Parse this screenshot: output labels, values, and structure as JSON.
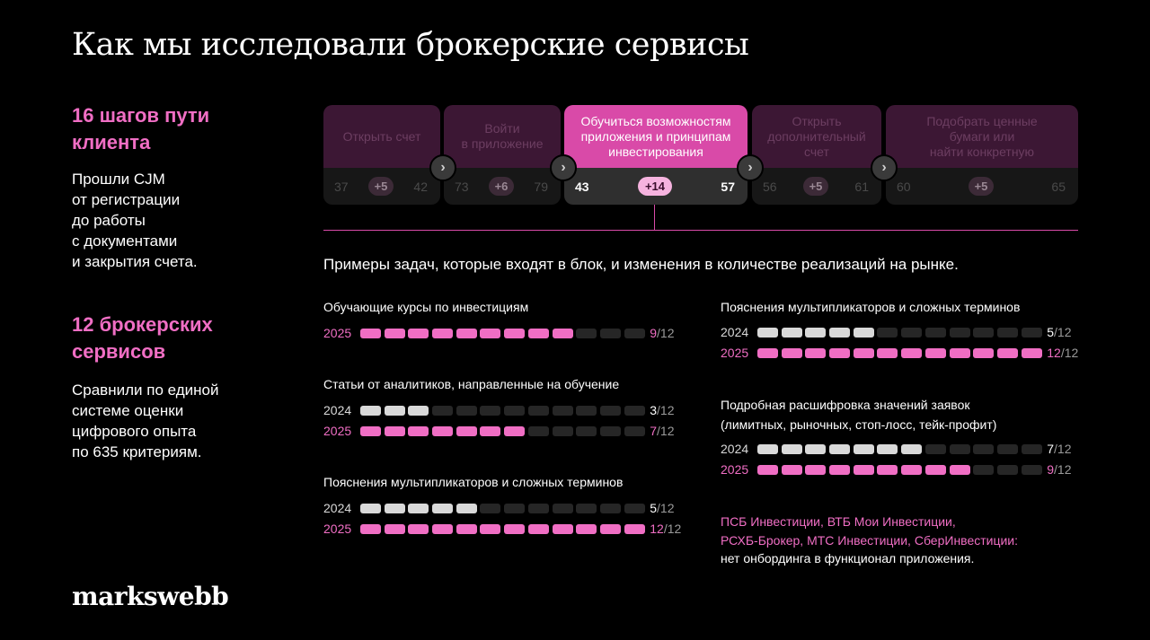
{
  "title": "Как мы исследовали брокерские сервисы",
  "left": {
    "block1_head": [
      "16 шагов пути",
      "клиента"
    ],
    "block1_text": [
      "Прошли CJM",
      "от регистрации",
      "до работы",
      "с документами",
      "и закрытия счета."
    ],
    "block2_head": [
      "12 брокерских",
      "сервисов"
    ],
    "block2_text": [
      "Сравнили по единой",
      "системе оценки",
      "цифрового опыта",
      "по 635 критериям."
    ]
  },
  "logo": "markswebb",
  "stages": [
    {
      "label": [
        "Открыть счет"
      ],
      "from": "37",
      "delta": "+5",
      "to": "42"
    },
    {
      "label": [
        "Войти",
        "в приложение"
      ],
      "from": "73",
      "delta": "+6",
      "to": "79"
    },
    {
      "label": [
        "Обучиться возможностям",
        "приложения и принципам",
        "инвестирования"
      ],
      "from": "43",
      "delta": "+14",
      "to": "57"
    },
    {
      "label": [
        "Открыть",
        "дополнительный",
        "счет"
      ],
      "from": "56",
      "delta": "+5",
      "to": "61"
    },
    {
      "label": [
        "Подобрать ценные",
        "бумаги или",
        "найти конкретную"
      ],
      "from": "60",
      "delta": "+5",
      "to": "65"
    }
  ],
  "intro": "Примеры задач, которые входят в блок, и изменения в количестве реализаций на рынке.",
  "tasks": [
    {
      "title": [
        "Обучающие курсы по инвестициям"
      ],
      "rows": [
        {
          "year": "2025",
          "value": 9,
          "total": "12"
        }
      ]
    },
    {
      "title": [
        "Статьи от аналитиков, направленные на обучение"
      ],
      "rows": [
        {
          "year": "2024",
          "value": 3,
          "total": "12"
        },
        {
          "year": "2025",
          "value": 7,
          "total": "12"
        }
      ]
    },
    {
      "title": [
        "Пояснения мультипликаторов и сложных терминов"
      ],
      "rows": [
        {
          "year": "2024",
          "value": 5,
          "total": "12"
        },
        {
          "year": "2025",
          "value": 12,
          "total": "12"
        }
      ]
    },
    {
      "title": [
        "Пояснения мультипликаторов и сложных терминов"
      ],
      "rows": [
        {
          "year": "2024",
          "value": 5,
          "total": "12"
        },
        {
          "year": "2025",
          "value": 12,
          "total": "12"
        }
      ]
    },
    {
      "title": [
        "Подробная расшифровка значений заявок",
        "(лимитных, рыночных, стоп-лосс, тейк-профит)"
      ],
      "rows": [
        {
          "year": "2024",
          "value": 7,
          "total": "12"
        },
        {
          "year": "2025",
          "value": 9,
          "total": "12"
        }
      ]
    }
  ],
  "note": {
    "pink_lines": [
      "ПСБ Инвестиции, ВТБ Мои Инвестиции,",
      "РСХБ-Брокер, МТС Инвестиции, СберИнвестиции:"
    ],
    "white_line": "нет онбординга в функционал приложения."
  },
  "colors": {
    "accent": "#f06ec4",
    "active_stage": "#d94aa8",
    "inactive_stage": "#3c1734",
    "bar_2024": "#d9d9d9",
    "bar_empty": "#262626"
  },
  "icons": {
    "arrow": "chevron-right-icon"
  }
}
